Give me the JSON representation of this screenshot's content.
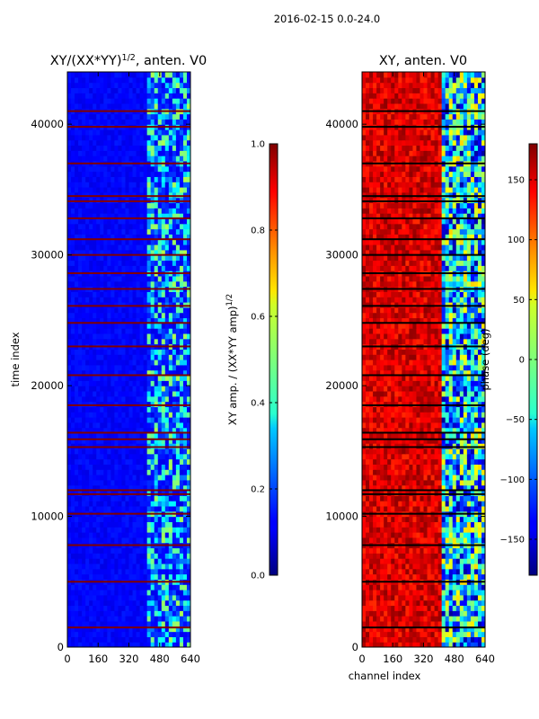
{
  "figure": {
    "suptitle": "2016-02-15 0.0-24.0"
  },
  "chart_data": [
    {
      "type": "heatmap",
      "title": "XY/(XX*YY)",
      "title_exponent": "1/2",
      "title_suffix": ", anten. V0",
      "xlabel": "",
      "ylabel": "time index",
      "xlim": [
        0,
        640
      ],
      "ylim": [
        0,
        44000
      ],
      "xticks": [
        0,
        160,
        320,
        480,
        640
      ],
      "yticks": [
        0,
        10000,
        20000,
        30000,
        40000
      ],
      "colormap": "jet",
      "colorbar": {
        "label": "XY amp. / (XX*YY amp)",
        "label_exponent": "1/2",
        "vmin": 0.0,
        "vmax": 1.0,
        "ticks": [
          "0.0",
          "0.2",
          "0.4",
          "0.6",
          "0.8",
          "1.0"
        ]
      },
      "regions": {
        "background_value": 0.1,
        "bright_channel_band": [
          410,
          640
        ],
        "bright_value_range": [
          0.2,
          0.55
        ],
        "flagged_rows_value": 1.0,
        "flagged_rows": [
          1500,
          5000,
          7800,
          10200,
          11700,
          12000,
          15300,
          15900,
          16400,
          18500,
          20800,
          23000,
          24800,
          26100,
          27400,
          28600,
          30000,
          31200,
          32800,
          34100,
          34500,
          37000,
          39800,
          41000
        ]
      }
    },
    {
      "type": "heatmap",
      "title": "XY, anten. V0",
      "xlabel": "channel index",
      "ylabel": "",
      "xlim": [
        0,
        640
      ],
      "ylim": [
        0,
        44000
      ],
      "xticks": [
        0,
        160,
        320,
        480,
        640
      ],
      "yticks": [
        0,
        10000,
        20000,
        30000,
        40000
      ],
      "colormap": "jet",
      "colorbar": {
        "label": "phase (deg)",
        "vmin": -180,
        "vmax": 180,
        "ticks": [
          "150",
          "100",
          "50",
          "0",
          "−50",
          "−100",
          "−150"
        ],
        "tick_values": [
          150,
          100,
          50,
          0,
          -50,
          -100,
          -150
        ]
      },
      "regions": {
        "low_channel_phase_range_deg": [
          120,
          175
        ],
        "high_channel_band": [
          400,
          640
        ],
        "high_channel_phase_range_deg": [
          -170,
          60
        ],
        "flagged_rows": [
          1500,
          5000,
          7800,
          10200,
          11700,
          12000,
          15300,
          15900,
          16400,
          18500,
          20800,
          23000,
          24800,
          26100,
          27400,
          28600,
          30000,
          31200,
          32800,
          34100,
          34500,
          37000,
          39800,
          41000
        ]
      }
    }
  ]
}
